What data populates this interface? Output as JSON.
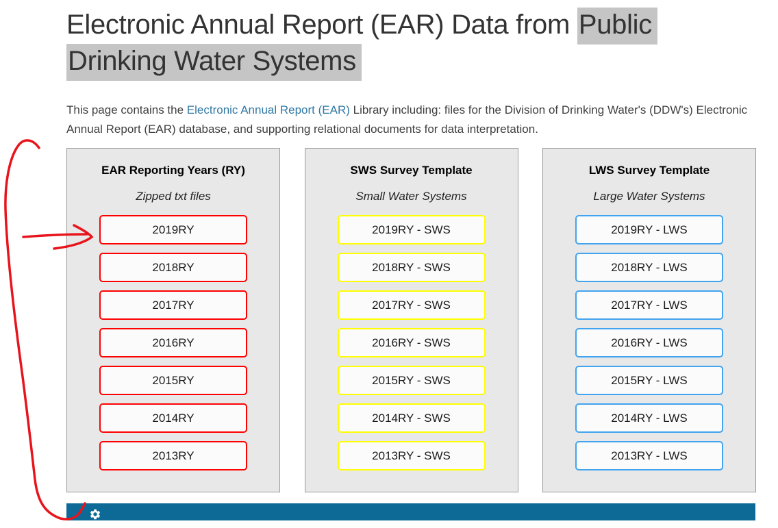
{
  "page": {
    "title": {
      "normal": "Electronic Annual Report (EAR) Data from",
      "highlighted_line1": "Public",
      "highlighted_line2": "Drinking Water Systems",
      "highlight_color": "#c5c5c5"
    },
    "intro": {
      "before_link": "This page contains the ",
      "link": "Electronic Annual Report (EAR)",
      "after_link": " Library including: files for the Division of Drinking Water's (DDW's) Electronic Annual Report (EAR) database, and supporting relational documents for data interpretation."
    }
  },
  "columns": [
    {
      "id": "ear-reporting-years",
      "title": "EAR Reporting Years (RY)",
      "subtitle": "Zipped txt files",
      "accent_color": "#ff0000",
      "buttons": [
        "2019RY",
        "2018RY",
        "2017RY",
        "2016RY",
        "2015RY",
        "2014RY",
        "2013RY"
      ]
    },
    {
      "id": "sws-survey-template",
      "title": "SWS Survey Template",
      "subtitle": "Small Water Systems",
      "accent_color": "#ffff00",
      "buttons": [
        "2019RY - SWS",
        "2018RY - SWS",
        "2017RY - SWS",
        "2016RY - SWS",
        "2015RY - SWS",
        "2014RY - SWS",
        "2013RY - SWS"
      ]
    },
    {
      "id": "lws-survey-template",
      "title": "LWS Survey Template",
      "subtitle": "Large Water Systems",
      "accent_color": "#41a4f0",
      "buttons": [
        "2019RY - LWS",
        "2018RY - LWS",
        "2017RY - LWS",
        "2016RY - LWS",
        "2015RY - LWS",
        "2014RY - LWS",
        "2013RY - LWS"
      ]
    }
  ],
  "footer_bar": {
    "background_color": "#0d6a96",
    "icon": "gear-icon"
  },
  "annotation": {
    "color": "#e8141c",
    "description": "hand-drawn red curved line along left margin with arrow pointing at the 2019RY button"
  }
}
